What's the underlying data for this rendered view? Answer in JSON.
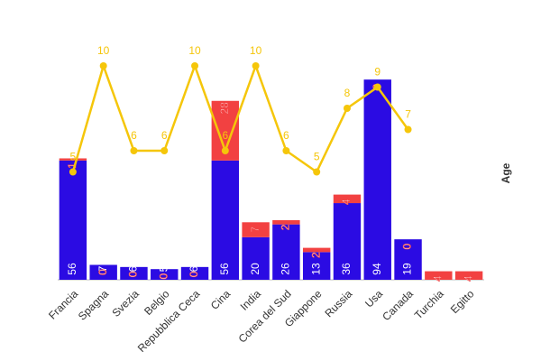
{
  "chart_data": {
    "type": "bar",
    "stacked": true,
    "y2_label": "Age",
    "categories": [
      "Francia",
      "Spagna",
      "Svezia",
      "Belgio",
      "Repubblica Ceca",
      "Cina",
      "India",
      "Corea del Sud",
      "Giappone",
      "Russia",
      "Usa",
      "Canada",
      "Turchia",
      "Egitto"
    ],
    "series": [
      {
        "type": "bar",
        "color": "#2b0be3",
        "values": [
          56,
          7,
          6,
          5,
          6,
          56,
          20,
          26,
          13,
          36,
          94,
          19,
          0,
          0
        ]
      },
      {
        "type": "bar",
        "color": "#f24141",
        "values": [
          1,
          0,
          0,
          0,
          0,
          28,
          7,
          2,
          2,
          4,
          0,
          0,
          4,
          4
        ]
      },
      {
        "type": "line",
        "axis": "y2",
        "color": "#f5c60a",
        "values": [
          5,
          10,
          6,
          6,
          10,
          6,
          10,
          6,
          5,
          8,
          9,
          7,
          null,
          null
        ]
      }
    ],
    "ylim": [
      0,
      100
    ],
    "y2lim": [
      0,
      10
    ]
  }
}
